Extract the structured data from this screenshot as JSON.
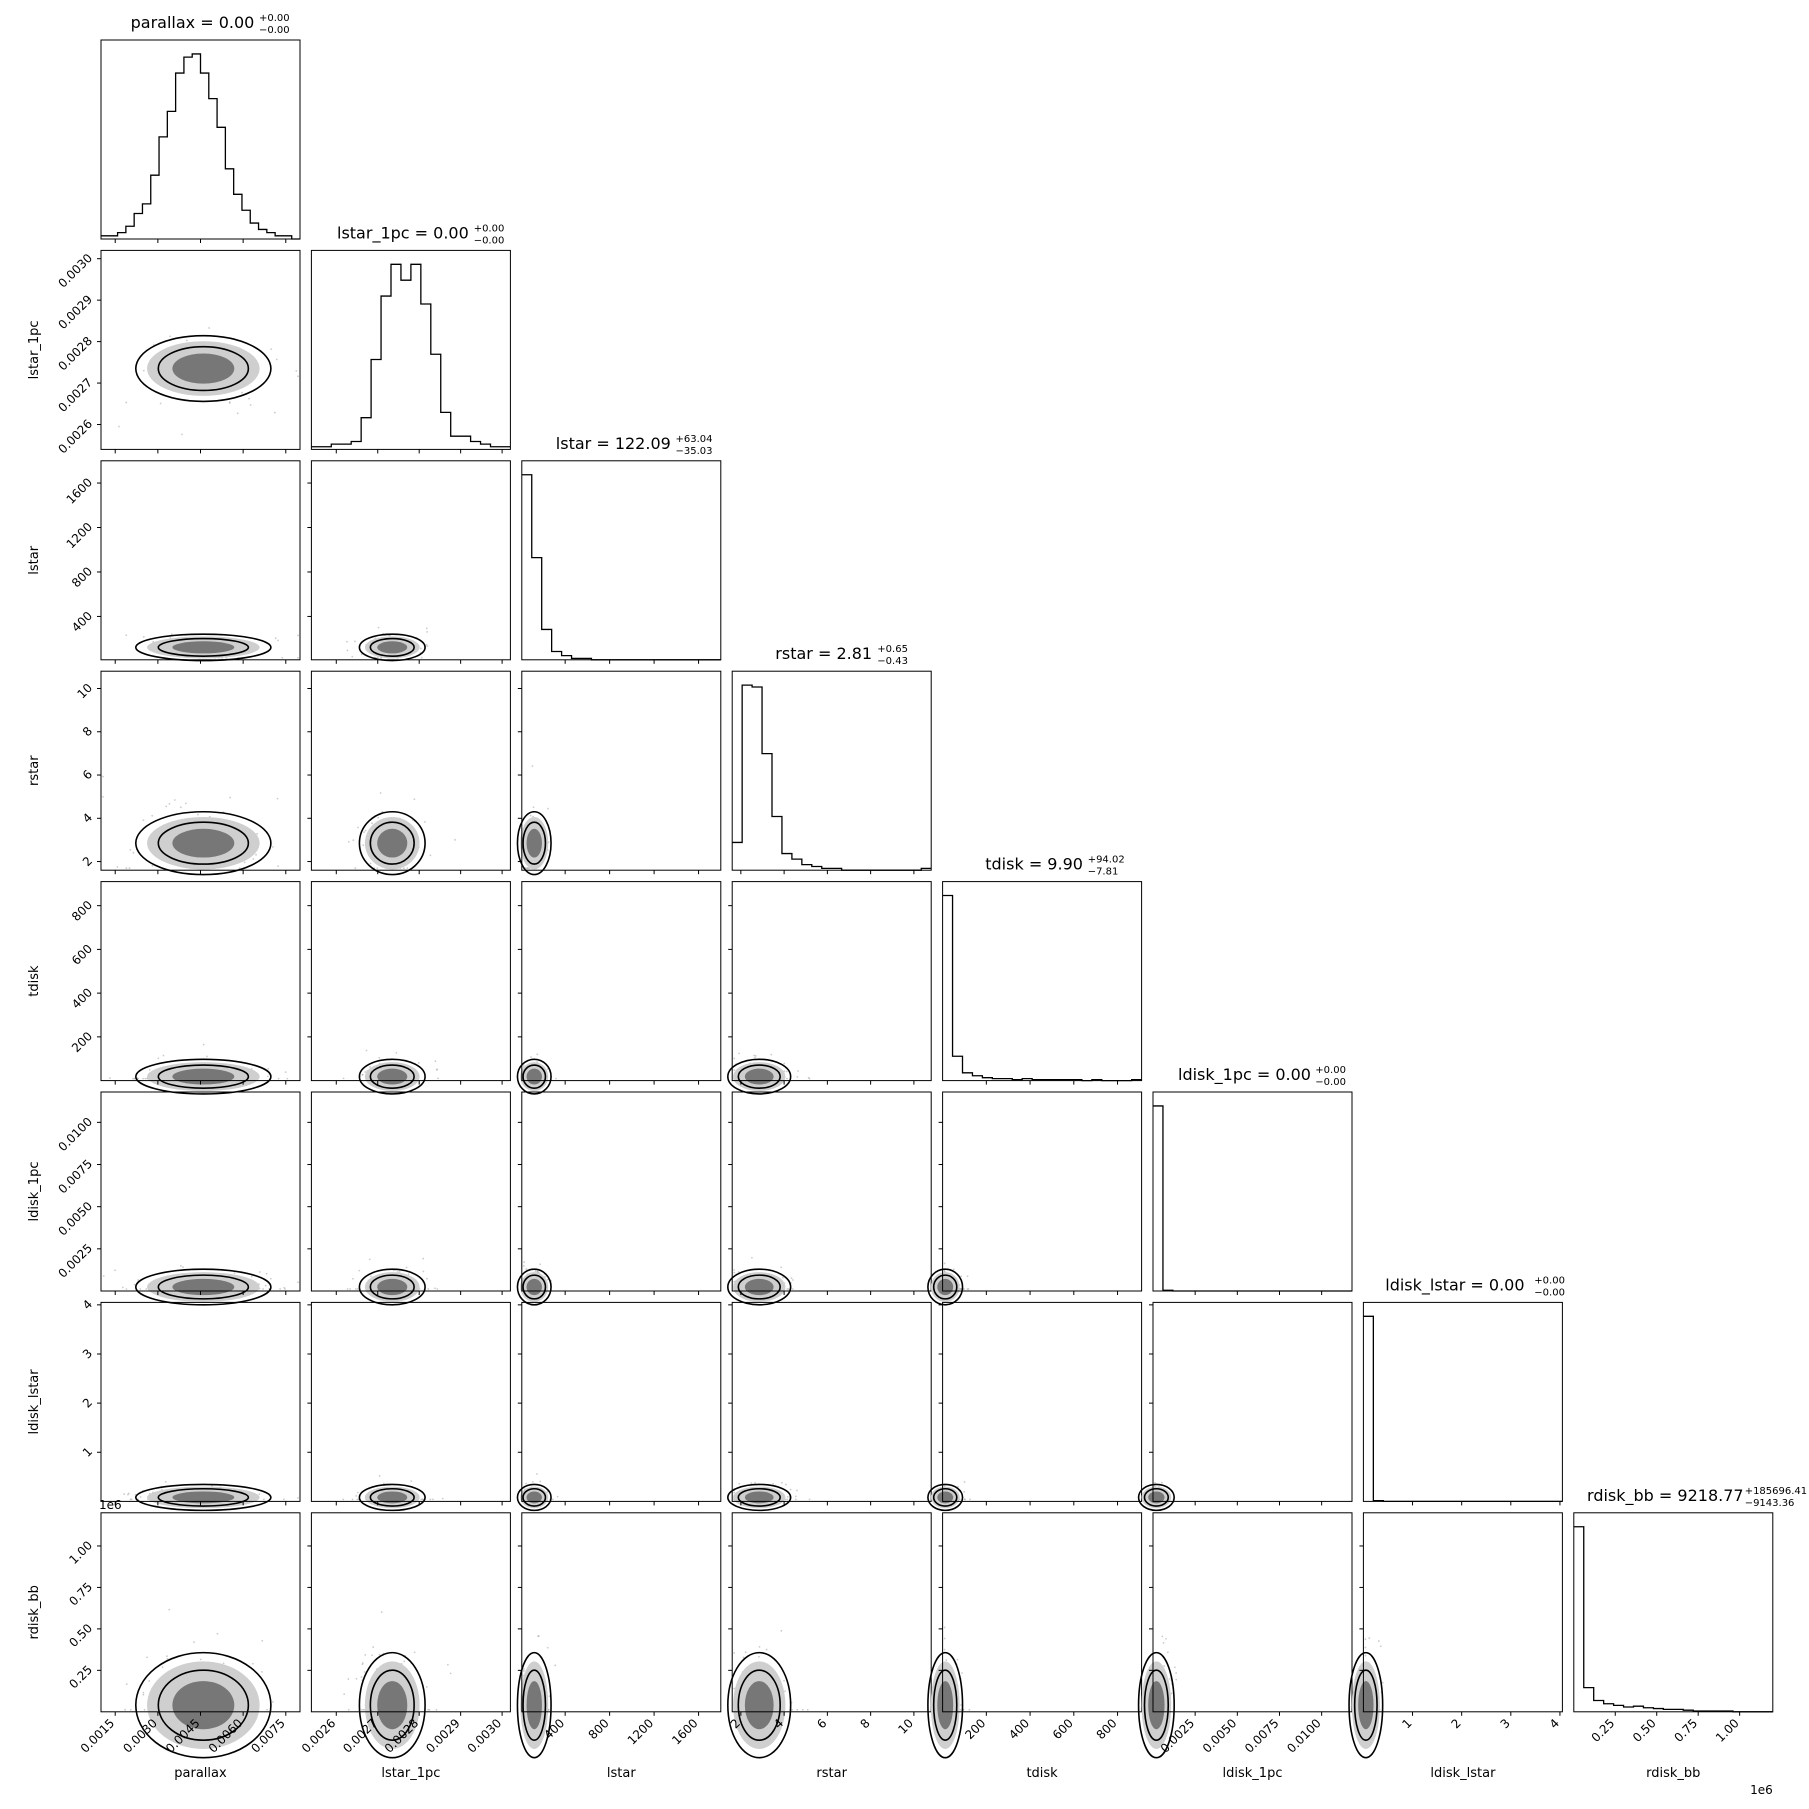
{
  "chart_data": {
    "type": "corner",
    "parameters": [
      {
        "name": "parallax",
        "title": "parallax = 0.00",
        "sup": "+0.00",
        "sub": "−0.00",
        "range": [
          0.001,
          0.008
        ],
        "ticks": [
          {
            "v": 0.0015,
            "t": "0.0015"
          },
          {
            "v": 0.003,
            "t": "0.0030"
          },
          {
            "v": 0.0045,
            "t": "0.0045"
          },
          {
            "v": 0.006,
            "t": "0.0060"
          },
          {
            "v": 0.0075,
            "t": "0.0075"
          }
        ],
        "hist": [
          1,
          1,
          2,
          4,
          8,
          11,
          20,
          32,
          40,
          52,
          57,
          58,
          52,
          44,
          35,
          22,
          14,
          9,
          5,
          3,
          2,
          1,
          1,
          0
        ],
        "center": 0.0046,
        "spread": 0.0009
      },
      {
        "name": "lstar_1pc",
        "title": "lstar_1pc = 0.00",
        "sup": "+0.00",
        "sub": "−0.00",
        "range": [
          0.00254,
          0.00302
        ],
        "ticks": [
          {
            "v": 0.0026,
            "t": "0.0026"
          },
          {
            "v": 0.0027,
            "t": "0.0027"
          },
          {
            "v": 0.0028,
            "t": "0.0028"
          },
          {
            "v": 0.0029,
            "t": "0.0029"
          },
          {
            "v": 0.003,
            "t": "0.0030"
          }
        ],
        "hist": [
          1,
          1,
          2,
          2,
          3,
          12,
          34,
          58,
          70,
          64,
          70,
          55,
          36,
          14,
          5,
          5,
          3,
          2,
          1,
          1
        ],
        "center": 0.002735,
        "spread": 3e-05
      },
      {
        "name": "lstar",
        "title": "lstar = 122.09",
        "sup": "+63.04",
        "sub": "−35.03",
        "range": [
          10,
          1800
        ],
        "ticks": [
          {
            "v": 400,
            "t": "400"
          },
          {
            "v": 800,
            "t": "800"
          },
          {
            "v": 1200,
            "t": "1200"
          },
          {
            "v": 1600,
            "t": "1600"
          }
        ],
        "hist": [
          134,
          74,
          22,
          6,
          3,
          1,
          1,
          0,
          0,
          0,
          0,
          0,
          0,
          0,
          0,
          0,
          0,
          0,
          0,
          0
        ],
        "center": 122,
        "spread": 45
      },
      {
        "name": "rstar",
        "title": "rstar = 2.81",
        "sup": "+0.65",
        "sub": "−0.43",
        "range": [
          1.6,
          10.8
        ],
        "ticks": [
          {
            "v": 2,
            "t": "2"
          },
          {
            "v": 4,
            "t": "4"
          },
          {
            "v": 6,
            "t": "6"
          },
          {
            "v": 8,
            "t": "8"
          },
          {
            "v": 10,
            "t": "10"
          }
        ],
        "hist": [
          15,
          100,
          99,
          63,
          29,
          9,
          6,
          3,
          2,
          1,
          1,
          0,
          0,
          0,
          0,
          0,
          0,
          0,
          0,
          1
        ],
        "center": 2.85,
        "spread": 0.55
      },
      {
        "name": "tdisk",
        "title": "tdisk = 9.90",
        "sup": "+94.02",
        "sub": "−7.81",
        "range": [
          0,
          910
        ],
        "ticks": [
          {
            "v": 200,
            "t": "200"
          },
          {
            "v": 400,
            "t": "400"
          },
          {
            "v": 600,
            "t": "600"
          },
          {
            "v": 800,
            "t": "800"
          }
        ],
        "hist": [
          190,
          25,
          8,
          5,
          3,
          2,
          2,
          1,
          2,
          1,
          1,
          1,
          1,
          1,
          0,
          1,
          0,
          0,
          0,
          1
        ],
        "center": 12,
        "spread": 30
      },
      {
        "name": "ldisk_1pc",
        "title": "ldisk_1pc = 0.00",
        "sup": "+0.00",
        "sub": "−0.00",
        "range": [
          0,
          0.0118
        ],
        "ticks": [
          {
            "v": 0.0025,
            "t": "0.0025"
          },
          {
            "v": 0.005,
            "t": "0.0050"
          },
          {
            "v": 0.0075,
            "t": "0.0075"
          },
          {
            "v": 0.01,
            "t": "0.0100"
          }
        ],
        "hist": [
          250,
          1,
          0,
          0,
          0,
          0,
          0,
          0,
          0,
          0,
          0,
          0,
          0,
          0,
          0,
          0,
          0,
          0,
          0,
          0
        ],
        "center": 0.0002,
        "spread": 0.0004
      },
      {
        "name": "ldisk_lstar",
        "title": "ldisk_lstar = 0.00",
        "sup": "+0.00",
        "sub": "−0.00",
        "range": [
          0,
          4.05
        ],
        "ticks": [
          {
            "v": 1,
            "t": "1"
          },
          {
            "v": 2,
            "t": "2"
          },
          {
            "v": 3,
            "t": "3"
          },
          {
            "v": 4,
            "t": "4"
          }
        ],
        "hist": [
          250,
          1,
          0,
          0,
          0,
          0,
          0,
          0,
          0,
          0,
          0,
          0,
          0,
          0,
          0,
          0,
          0,
          0,
          0,
          0
        ],
        "center": 0.05,
        "spread": 0.1
      },
      {
        "name": "rdisk_bb",
        "title": "rdisk_bb = 9218.77",
        "sup": "+185696.41",
        "sub": "−9143.36",
        "range": [
          0,
          1200000
        ],
        "ticks": [
          {
            "v": 250000,
            "t": "0.25"
          },
          {
            "v": 500000,
            "t": "0.50"
          },
          {
            "v": 750000,
            "t": "0.75"
          },
          {
            "v": 1000000,
            "t": "1.00"
          }
        ],
        "hist": [
          230,
          30,
          14,
          10,
          8,
          6,
          7,
          5,
          4,
          3,
          3,
          2,
          1,
          1,
          1,
          1,
          0,
          0,
          0,
          0
        ],
        "center": 40000,
        "spread": 120000,
        "offset": "1e6"
      }
    ]
  }
}
